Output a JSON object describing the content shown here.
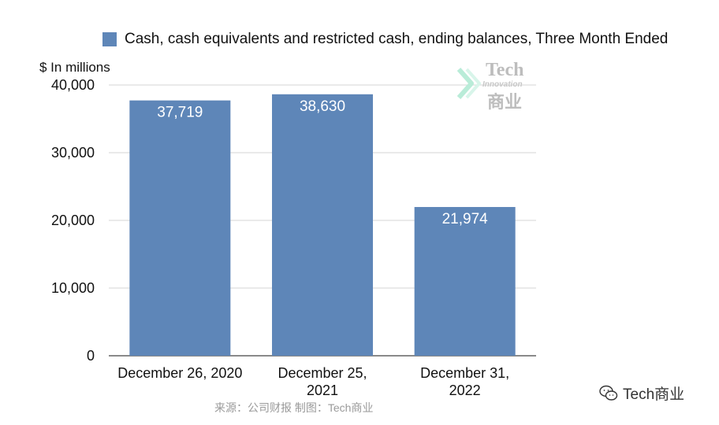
{
  "chart_data": {
    "type": "bar",
    "title": "",
    "legend": [
      "Cash, cash equivalents and restricted cash, ending balances,  Three Month Ended"
    ],
    "ylabel": "$ In millions",
    "xlabel": "",
    "categories": [
      "December 26, 2020",
      "December 25, 2021",
      "December 31, 2022"
    ],
    "category_lines": [
      [
        "December 26, 2020"
      ],
      [
        "December 25,",
        "2021"
      ],
      [
        "December 31,",
        "2022"
      ]
    ],
    "series": [
      {
        "name": "Cash, cash equivalents and restricted cash, ending balances,  Three Month Ended",
        "values": [
          37719,
          38630,
          21974
        ]
      }
    ],
    "value_labels": [
      "37,719",
      "38,630",
      "21,974"
    ],
    "ylim": [
      0,
      40000
    ],
    "yticks": [
      0,
      10000,
      20000,
      30000,
      40000
    ],
    "ytick_labels": [
      "0",
      "10,000",
      "20,000",
      "30,000",
      "40,000"
    ],
    "grid": true,
    "legend_position": "top",
    "bar_color": "#5e86b8"
  },
  "source_note": "来源：公司财报 制图：Tech商业",
  "watermark": {
    "tech": "Tech",
    "innovation": "Innovation",
    "cn": "商业"
  },
  "brand": {
    "label": "Tech商业",
    "icon": "wechat-icon"
  }
}
